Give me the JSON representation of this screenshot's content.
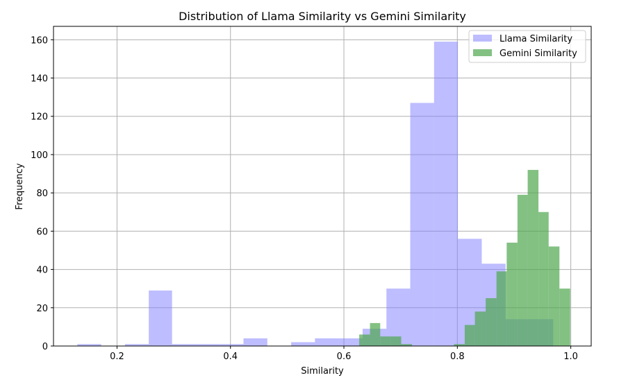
{
  "chart_data": {
    "type": "bar",
    "title": "Distribution of Llama Similarity vs Gemini Similarity",
    "xlabel": "Similarity",
    "ylabel": "Frequency",
    "xlim": [
      0.088,
      1.036
    ],
    "ylim": [
      0,
      167
    ],
    "xticks": [
      0.2,
      0.4,
      0.6,
      0.8,
      1.0
    ],
    "xtick_labels": [
      "0.2",
      "0.4",
      "0.6",
      "0.8",
      "1.0"
    ],
    "yticks": [
      0,
      20,
      40,
      60,
      80,
      100,
      120,
      140,
      160
    ],
    "ytick_labels": [
      "0",
      "20",
      "40",
      "60",
      "80",
      "100",
      "120",
      "140",
      "160"
    ],
    "grid": true,
    "legend_position": "top-right",
    "series": [
      {
        "name": "Llama Similarity",
        "color": "#7b7bff",
        "bins": [
          {
            "x0": 0.13,
            "x1": 0.172,
            "count": 1
          },
          {
            "x0": 0.172,
            "x1": 0.214,
            "count": 0
          },
          {
            "x0": 0.214,
            "x1": 0.256,
            "count": 1
          },
          {
            "x0": 0.256,
            "x1": 0.297,
            "count": 29
          },
          {
            "x0": 0.297,
            "x1": 0.339,
            "count": 1
          },
          {
            "x0": 0.339,
            "x1": 0.381,
            "count": 1
          },
          {
            "x0": 0.381,
            "x1": 0.423,
            "count": 1
          },
          {
            "x0": 0.423,
            "x1": 0.465,
            "count": 4
          },
          {
            "x0": 0.465,
            "x1": 0.507,
            "count": 0
          },
          {
            "x0": 0.507,
            "x1": 0.549,
            "count": 2
          },
          {
            "x0": 0.549,
            "x1": 0.591,
            "count": 4
          },
          {
            "x0": 0.591,
            "x1": 0.633,
            "count": 4
          },
          {
            "x0": 0.633,
            "x1": 0.675,
            "count": 9
          },
          {
            "x0": 0.675,
            "x1": 0.717,
            "count": 30
          },
          {
            "x0": 0.717,
            "x1": 0.759,
            "count": 127
          },
          {
            "x0": 0.759,
            "x1": 0.801,
            "count": 159
          },
          {
            "x0": 0.801,
            "x1": 0.843,
            "count": 56
          },
          {
            "x0": 0.843,
            "x1": 0.885,
            "count": 43
          },
          {
            "x0": 0.885,
            "x1": 0.927,
            "count": 14
          },
          {
            "x0": 0.927,
            "x1": 0.969,
            "count": 14
          }
        ]
      },
      {
        "name": "Gemini Similarity",
        "color": "#4ea64e",
        "bins": [
          {
            "x0": 0.627,
            "x1": 0.646,
            "count": 6
          },
          {
            "x0": 0.646,
            "x1": 0.664,
            "count": 12
          },
          {
            "x0": 0.664,
            "x1": 0.683,
            "count": 5
          },
          {
            "x0": 0.683,
            "x1": 0.701,
            "count": 5
          },
          {
            "x0": 0.701,
            "x1": 0.72,
            "count": 1
          },
          {
            "x0": 0.72,
            "x1": 0.739,
            "count": 0
          },
          {
            "x0": 0.739,
            "x1": 0.757,
            "count": 0
          },
          {
            "x0": 0.757,
            "x1": 0.776,
            "count": 0
          },
          {
            "x0": 0.776,
            "x1": 0.794,
            "count": 0
          },
          {
            "x0": 0.794,
            "x1": 0.813,
            "count": 1
          },
          {
            "x0": 0.813,
            "x1": 0.831,
            "count": 11
          },
          {
            "x0": 0.831,
            "x1": 0.85,
            "count": 18
          },
          {
            "x0": 0.85,
            "x1": 0.869,
            "count": 25
          },
          {
            "x0": 0.869,
            "x1": 0.887,
            "count": 39
          },
          {
            "x0": 0.887,
            "x1": 0.906,
            "count": 54
          },
          {
            "x0": 0.906,
            "x1": 0.924,
            "count": 79
          },
          {
            "x0": 0.924,
            "x1": 0.943,
            "count": 92
          },
          {
            "x0": 0.943,
            "x1": 0.961,
            "count": 70
          },
          {
            "x0": 0.961,
            "x1": 0.98,
            "count": 52
          },
          {
            "x0": 0.98,
            "x1": 0.999,
            "count": 30
          }
        ]
      }
    ]
  }
}
